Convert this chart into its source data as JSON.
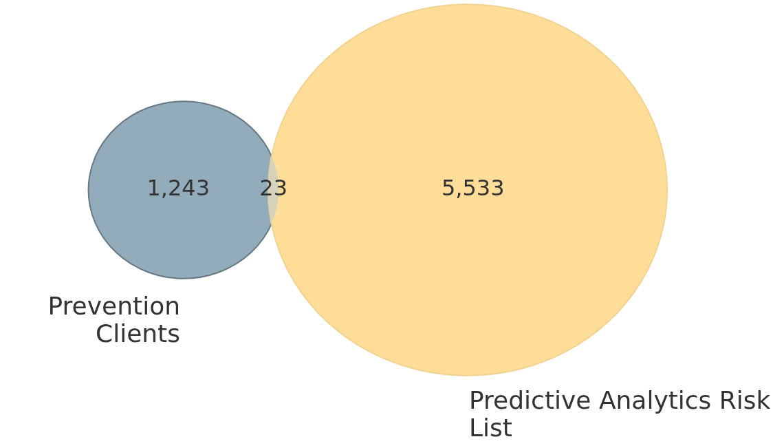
{
  "chart_data": {
    "type": "other",
    "categories": [
      "Prevention Clients",
      null,
      "Predictive Analytics Risk List"
    ],
    "values": [
      1243,
      23,
      5533
    ],
    "value_labels": [
      "1,243",
      "23",
      "5,533"
    ],
    "colors": [
      "#93acbb",
      "#d6d3bd",
      "#fedd98"
    ]
  }
}
